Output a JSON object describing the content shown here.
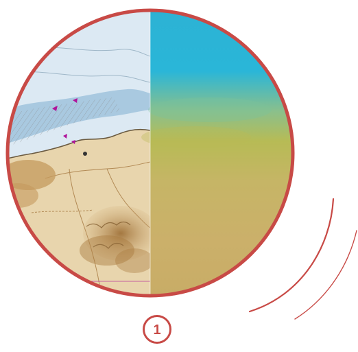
{
  "step": {
    "number": "1"
  },
  "colors": {
    "ring": "#c84a46",
    "chart_water": "#dbe8f2",
    "chart_land": "#e9d6ae",
    "relief": "#b78c52",
    "satellite_blue": "#27b4d6",
    "satellite_sand": "#c8ae66"
  },
  "illustration": {
    "left_half": "nautical-chart",
    "right_half": "satellite-gradient"
  }
}
